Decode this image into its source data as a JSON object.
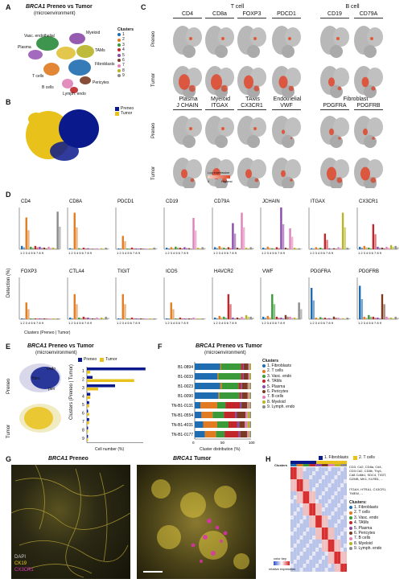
{
  "panels": {
    "A": "A",
    "B": "B",
    "C": "C",
    "D": "D",
    "E": "E",
    "F": "F",
    "G": "G",
    "H": "H"
  },
  "colors": {
    "preneo": "#0a1a8c",
    "tumor": "#e8c21a",
    "orange": "#e07b22",
    "red": "#c0262a",
    "green": "#3a9a3a",
    "purple": "#8a4aa8",
    "pink": "#e080b8",
    "brown": "#7a3b22",
    "olive": "#b8b428",
    "blue": "#1f6db0",
    "gray": "#8a8a8a"
  },
  "A": {
    "title_italic": "BRCA1",
    "title_rest": " Preneo vs Tumor",
    "subtitle": "(microenvironment)",
    "labels": [
      "Vasc. endothelial",
      "Myeloid",
      "Plasma",
      "TAMs",
      "T cells",
      "Fibroblasts",
      "B cells",
      "Pericytes",
      "Lymph. endo"
    ],
    "legend_title": "Clusters",
    "legend": [
      "1",
      "2",
      "3",
      "4",
      "5",
      "6",
      "7",
      "8",
      "9"
    ]
  },
  "B": {
    "legend": [
      "Preneo",
      "Tumor"
    ]
  },
  "C": {
    "group1": "T cell",
    "group2": "B cell",
    "genes_top": [
      "CD4",
      "CD8a",
      "FOXP3",
      "PDCD1",
      "CD19",
      "CD79A"
    ],
    "group3": [
      "Plasma",
      "Myeloid",
      "TAMs",
      "Endothelial",
      "Fibroblast"
    ],
    "genes_bottom": [
      "J CHAIN",
      "ITGAX",
      "CX3CR1",
      "VWF",
      "PDGFRA",
      "PDGFRB"
    ],
    "rows": [
      "Preneo",
      "Tumor",
      "Preneo",
      "Tumor"
    ],
    "colorbar_title": "Log expression",
    "colorbar_lo": "0",
    "colorbar_hi": "Highest"
  },
  "D": {
    "ylabel": "Detection (%)",
    "xlabel": "Clusters (Preneo | Tumor)",
    "row1": [
      "CD4",
      "CD8A",
      "PDCD1",
      "CD19",
      "CD79A",
      "JCHAIN",
      "ITGAX",
      "CX3CR1"
    ],
    "row2": [
      "FOXP3",
      "CTLA4",
      "TIGIT",
      "ICOS",
      "HAVCR2",
      "VWF",
      "PDGFRA",
      "PDGFRB"
    ],
    "ticks": "1 2 3 4 5 6 7 8 9"
  },
  "E": {
    "title_italic": "BRCA1",
    "title_rest": " Preneo vs Tumor",
    "subtitle": "(microenvironment)",
    "legend": [
      "Preneo",
      "Tumor"
    ],
    "tsne_labels": [
      "endo",
      "fibro",
      "peri"
    ],
    "rows": [
      "Preneo",
      "Tumor"
    ],
    "ylabel": "Clusters (Preneo | Tumor)",
    "xlabel": "Cell number (%)",
    "xticks": [
      "0",
      "10",
      "20",
      "30",
      "40",
      "50"
    ],
    "bar_cats": [
      "1",
      "2",
      "3",
      "4",
      "5",
      "6",
      "7",
      "8",
      "9"
    ]
  },
  "F": {
    "title_italic": "BRCA1",
    "title_rest": " Preneo vs Tumor",
    "subtitle": "(microenvironment)",
    "samples": [
      "B1-0894",
      "B1-0033",
      "B1-0023",
      "B1-0090",
      "TN-B1-0131",
      "TN-B1-0554",
      "TN-B1-4031",
      "TN-B1-0177"
    ],
    "xlabel": "Cluster distribution (%)",
    "xticks": [
      "0",
      "50",
      "100"
    ],
    "legend_title": "Clusters",
    "legend": [
      "1. Fibroblasts",
      "2. T cells",
      "3. Vasc. endo",
      "4. TAMs",
      "5. Plasma",
      "6. Pericytes",
      "7. B cells",
      "8. Myeloid",
      "9. Lymph. endo"
    ]
  },
  "G": {
    "title1_italic": "BRCA1",
    "title1_rest": " Preneo",
    "title2_italic": "BRCA1",
    "title2_rest": " Tumor",
    "legend": [
      "DAPI",
      "CK19",
      "CX3CR1"
    ]
  },
  "H": {
    "legend": [
      "1. Fibroblasts",
      "2. T cells",
      "3. Vasc. endo",
      "4. TAMs",
      "5. Plasma",
      "6. Pericytes",
      "7. B cells",
      "8. Myeloid",
      "9. Lymph. endo"
    ],
    "header": "Clusters",
    "gene_blocks": [
      "CD3, Cd2, CD8a, Cd4,",
      "CD3 Cd2, CD8b, Thy1,",
      "Cd8 Cd8b1, SDC4, TIGIT, ",
      "GZMB, MK1, KLRB1, ..."
    ],
    "gene_blocks2": [
      "ITGAX, HTRA1, CX3CR1, ",
      "TMEM, ..."
    ],
    "legend_title": "Clusters:",
    "colorkey_title": "color key",
    "colorkey_label": "relative expression"
  },
  "chart_data": [
    {
      "type": "bar",
      "panel": "D",
      "note": "Detection % per cluster 1-9, Preneo | Tumor",
      "series": [
        {
          "name": "CD4",
          "values": [
            4,
            38,
            3,
            4,
            3,
            2,
            3,
            2,
            45
          ]
        },
        {
          "name": "CD8A",
          "values": [
            2,
            70,
            2,
            3,
            2,
            1,
            2,
            2,
            3
          ]
        },
        {
          "name": "PDCD1",
          "values": [
            1,
            16,
            1,
            2,
            1,
            1,
            1,
            1,
            2
          ]
        },
        {
          "name": "CD19",
          "values": [
            3,
            4,
            5,
            3,
            4,
            2,
            60,
            3,
            4
          ]
        },
        {
          "name": "CD79A",
          "values": [
            4,
            6,
            3,
            4,
            50,
            3,
            70,
            3,
            4
          ]
        },
        {
          "name": "JCHAIN",
          "values": [
            3,
            5,
            2,
            4,
            80,
            3,
            40,
            3,
            2
          ]
        },
        {
          "name": "ITGAX",
          "values": [
            2,
            4,
            3,
            30,
            2,
            2,
            4,
            70,
            3
          ]
        },
        {
          "name": "CX3CR1",
          "values": [
            3,
            4,
            2,
            30,
            3,
            2,
            3,
            5,
            4
          ]
        },
        {
          "name": "FOXP3",
          "values": [
            1,
            20,
            1,
            1,
            1,
            1,
            1,
            1,
            1
          ]
        },
        {
          "name": "CTLA4",
          "values": [
            2,
            30,
            2,
            3,
            2,
            1,
            2,
            2,
            3
          ]
        },
        {
          "name": "TIGIT",
          "values": [
            1,
            30,
            1,
            2,
            1,
            1,
            1,
            1,
            1
          ]
        },
        {
          "name": "ICOS",
          "values": [
            1,
            20,
            1,
            2,
            1,
            1,
            2,
            1,
            1
          ]
        },
        {
          "name": "HAVCR2",
          "values": [
            2,
            4,
            3,
            30,
            2,
            2,
            3,
            5,
            3
          ]
        },
        {
          "name": "VWF",
          "values": [
            3,
            4,
            30,
            3,
            2,
            5,
            3,
            2,
            20
          ]
        },
        {
          "name": "PDGFRA",
          "values": [
            60,
            3,
            4,
            3,
            2,
            5,
            3,
            2,
            3
          ]
        },
        {
          "name": "PDGFRB",
          "values": [
            40,
            3,
            5,
            3,
            2,
            30,
            3,
            2,
            3
          ]
        }
      ]
    },
    {
      "type": "bar",
      "panel": "E",
      "orientation": "horizontal",
      "categories": [
        "1",
        "2",
        "3",
        "4",
        "5",
        "6",
        "7",
        "8",
        "9"
      ],
      "series": [
        {
          "name": "Preneo",
          "values": [
            52,
            5,
            25,
            3,
            2,
            1,
            2,
            1,
            1
          ]
        },
        {
          "name": "Tumor",
          "values": [
            3,
            42,
            10,
            3,
            2,
            2,
            2,
            1,
            1
          ]
        }
      ],
      "xlim": [
        0,
        50
      ]
    },
    {
      "type": "bar",
      "panel": "F",
      "orientation": "horizontal",
      "stacked": true,
      "categories": [
        "B1-0894",
        "B1-0033",
        "B1-0023",
        "B1-0090",
        "TN-B1-0131",
        "TN-B1-0554",
        "TN-B1-4031",
        "TN-B1-0177"
      ],
      "series": [
        {
          "name": "1. Fibroblasts",
          "values": [
            45,
            40,
            45,
            42,
            10,
            12,
            15,
            18
          ]
        },
        {
          "name": "2. T cells",
          "values": [
            2,
            2,
            3,
            2,
            30,
            20,
            25,
            20
          ]
        },
        {
          "name": "3. Vasc. endo",
          "values": [
            35,
            40,
            30,
            35,
            15,
            20,
            20,
            15
          ]
        },
        {
          "name": "4. TAMs",
          "values": [
            3,
            3,
            4,
            3,
            25,
            20,
            15,
            25
          ]
        },
        {
          "name": "5. Plasma",
          "values": [
            2,
            2,
            2,
            2,
            3,
            3,
            4,
            3
          ]
        },
        {
          "name": "6. Pericytes",
          "values": [
            8,
            8,
            10,
            10,
            10,
            15,
            10,
            12
          ]
        },
        {
          "name": "7. B cells",
          "values": [
            2,
            2,
            2,
            2,
            3,
            4,
            5,
            3
          ]
        },
        {
          "name": "8. Myeloid",
          "values": [
            2,
            2,
            2,
            2,
            2,
            4,
            4,
            2
          ]
        },
        {
          "name": "9. Lymph. endo",
          "values": [
            1,
            1,
            2,
            2,
            2,
            2,
            2,
            2
          ]
        }
      ],
      "xlim": [
        0,
        100
      ]
    }
  ]
}
